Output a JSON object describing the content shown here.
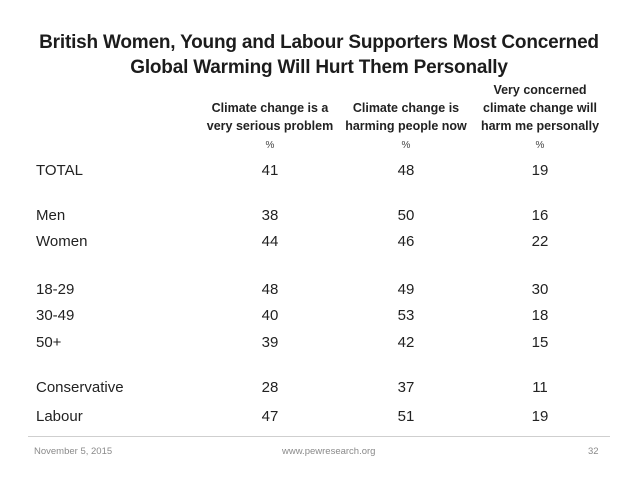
{
  "title_line1": "British Women, Young and Labour Supporters Most Concerned",
  "title_line2": "Global Warming Will Hurt Them Personally",
  "columns": [
    {
      "lines": [
        "Climate change is a",
        "very serious problem"
      ],
      "unit": "%"
    },
    {
      "lines": [
        "Climate change is",
        "harming people now"
      ],
      "unit": "%"
    },
    {
      "lines": [
        "Very concerned",
        "climate change will",
        "harm me personally"
      ],
      "unit": "%"
    }
  ],
  "rows": [
    {
      "label": "TOTAL",
      "values": [
        "41",
        "48",
        "19"
      ]
    },
    {
      "label": "Men",
      "values": [
        "38",
        "50",
        "16"
      ]
    },
    {
      "label": "Women",
      "values": [
        "44",
        "46",
        "22"
      ]
    },
    {
      "label": "18-29",
      "values": [
        "48",
        "49",
        "30"
      ]
    },
    {
      "label": "30-49",
      "values": [
        "40",
        "53",
        "18"
      ]
    },
    {
      "label": "50+",
      "values": [
        "39",
        "42",
        "15"
      ]
    },
    {
      "label": "Conservative",
      "values": [
        "28",
        "37",
        "11"
      ]
    },
    {
      "label": "Labour",
      "values": [
        "47",
        "51",
        "19"
      ]
    }
  ],
  "footer": {
    "date": "November 5, 2015",
    "url": "www.pewresearch.org",
    "page": "32"
  }
}
